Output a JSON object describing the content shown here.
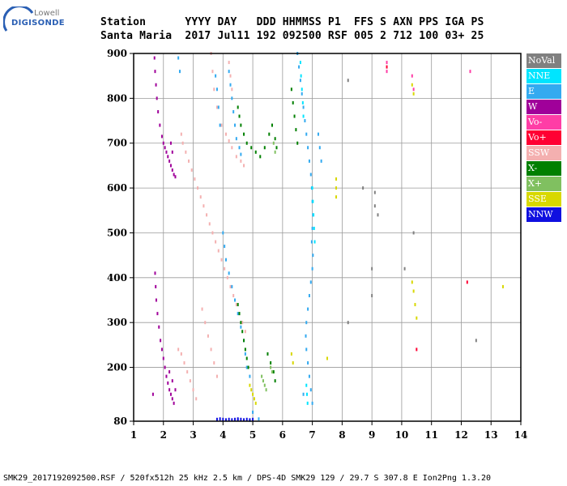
{
  "logo": {
    "brand_top": "Lowell",
    "brand_main": "DIGISONDE",
    "arc_color": "#2a5fb4"
  },
  "header": {
    "line1": "Station      YYYY DAY   DDD HHMMSS P1  FFS S AXN PPS IGA PS",
    "line2": "Santa Maria  2017 Jul11 192 092500 RSF 005 2 712 100 03+ 25"
  },
  "legend": [
    {
      "label": "NoVal",
      "color": "#808080"
    },
    {
      "label": "NNE",
      "color": "#00e5ff"
    },
    {
      "label": "E",
      "color": "#33aaf0"
    },
    {
      "label": "W",
      "color": "#a0009a"
    },
    {
      "label": "Vo-",
      "color": "#ff3da6"
    },
    {
      "label": "Vo+",
      "color": "#ff0033"
    },
    {
      "label": "SSW",
      "color": "#f4b0b0"
    },
    {
      "label": "X-",
      "color": "#008000"
    },
    {
      "label": "X+",
      "color": "#80c060"
    },
    {
      "label": "SSE",
      "color": "#d8d800"
    },
    {
      "label": "NNW",
      "color": "#1010e0"
    }
  ],
  "chart_data": {
    "type": "scatter",
    "title": "",
    "xlabel": "",
    "ylabel": "",
    "xlim": [
      1,
      14
    ],
    "ylim": [
      80,
      900
    ],
    "x_ticks": [
      "1",
      "2",
      "3",
      "4",
      "5",
      "6",
      "7",
      "8",
      "9",
      "10",
      "11",
      "12",
      "13",
      "14"
    ],
    "y_ticks": [
      "80",
      "200",
      "300",
      "400",
      "500",
      "600",
      "700",
      "800",
      "900"
    ],
    "grid": true,
    "series": [
      {
        "name": "W",
        "color": "#a0009a",
        "points": [
          [
            1.7,
            890
          ],
          [
            1.72,
            860
          ],
          [
            1.75,
            830
          ],
          [
            1.78,
            800
          ],
          [
            1.82,
            770
          ],
          [
            1.88,
            740
          ],
          [
            1.95,
            715
          ],
          [
            2.0,
            700
          ],
          [
            2.05,
            690
          ],
          [
            2.1,
            680
          ],
          [
            2.15,
            670
          ],
          [
            2.2,
            660
          ],
          [
            2.25,
            650
          ],
          [
            2.3,
            640
          ],
          [
            2.35,
            630
          ],
          [
            2.4,
            625
          ],
          [
            2.3,
            680
          ],
          [
            2.25,
            700
          ],
          [
            1.72,
            410
          ],
          [
            1.74,
            380
          ],
          [
            1.76,
            350
          ],
          [
            1.8,
            320
          ],
          [
            1.85,
            290
          ],
          [
            1.9,
            260
          ],
          [
            1.95,
            240
          ],
          [
            2.0,
            220
          ],
          [
            2.05,
            200
          ],
          [
            2.1,
            180
          ],
          [
            2.15,
            165
          ],
          [
            2.2,
            150
          ],
          [
            2.25,
            140
          ],
          [
            2.3,
            130
          ],
          [
            2.35,
            120
          ],
          [
            2.2,
            190
          ],
          [
            2.3,
            170
          ],
          [
            2.4,
            150
          ],
          [
            1.65,
            140
          ]
        ]
      },
      {
        "name": "SSW",
        "color": "#f4b0b0",
        "points": [
          [
            2.6,
            720
          ],
          [
            2.65,
            700
          ],
          [
            2.75,
            680
          ],
          [
            2.85,
            660
          ],
          [
            2.95,
            640
          ],
          [
            3.05,
            620
          ],
          [
            3.15,
            600
          ],
          [
            3.25,
            580
          ],
          [
            3.35,
            560
          ],
          [
            3.45,
            540
          ],
          [
            3.55,
            520
          ],
          [
            3.65,
            500
          ],
          [
            3.75,
            480
          ],
          [
            3.85,
            460
          ],
          [
            3.95,
            440
          ],
          [
            4.05,
            420
          ],
          [
            4.15,
            400
          ],
          [
            4.25,
            380
          ],
          [
            4.35,
            360
          ],
          [
            4.45,
            340
          ],
          [
            4.55,
            320
          ],
          [
            4.65,
            300
          ],
          [
            4.75,
            280
          ],
          [
            3.6,
            900
          ],
          [
            3.65,
            860
          ],
          [
            3.7,
            820
          ],
          [
            3.8,
            780
          ],
          [
            3.95,
            740
          ],
          [
            4.1,
            720
          ],
          [
            4.2,
            705
          ],
          [
            4.3,
            690
          ],
          [
            4.45,
            670
          ],
          [
            4.6,
            660
          ],
          [
            4.7,
            650
          ],
          [
            2.6,
            230
          ],
          [
            2.7,
            210
          ],
          [
            2.8,
            190
          ],
          [
            2.9,
            170
          ],
          [
            3.0,
            150
          ],
          [
            3.1,
            130
          ],
          [
            2.5,
            240
          ],
          [
            3.3,
            330
          ],
          [
            3.4,
            300
          ],
          [
            3.5,
            270
          ],
          [
            3.6,
            240
          ],
          [
            3.7,
            210
          ],
          [
            3.8,
            180
          ],
          [
            4.2,
            880
          ],
          [
            4.25,
            850
          ],
          [
            4.3,
            820
          ]
        ]
      },
      {
        "name": "E",
        "color": "#33aaf0",
        "points": [
          [
            4.2,
            860
          ],
          [
            4.25,
            830
          ],
          [
            4.3,
            800
          ],
          [
            4.35,
            770
          ],
          [
            4.4,
            740
          ],
          [
            4.45,
            710
          ],
          [
            4.55,
            690
          ],
          [
            4.6,
            675
          ],
          [
            3.75,
            850
          ],
          [
            3.8,
            820
          ],
          [
            3.85,
            780
          ],
          [
            3.9,
            740
          ],
          [
            4.0,
            500
          ],
          [
            4.05,
            470
          ],
          [
            4.1,
            440
          ],
          [
            4.2,
            410
          ],
          [
            4.3,
            380
          ],
          [
            4.4,
            350
          ],
          [
            4.5,
            320
          ],
          [
            4.6,
            290
          ],
          [
            4.7,
            260
          ],
          [
            4.75,
            230
          ],
          [
            4.8,
            200
          ],
          [
            4.9,
            180
          ],
          [
            6.5,
            900
          ],
          [
            6.55,
            870
          ],
          [
            6.6,
            840
          ],
          [
            6.65,
            810
          ],
          [
            6.7,
            780
          ],
          [
            6.75,
            750
          ],
          [
            6.8,
            720
          ],
          [
            6.85,
            690
          ],
          [
            6.9,
            660
          ],
          [
            6.95,
            630
          ],
          [
            6.98,
            600
          ],
          [
            7.0,
            570
          ],
          [
            7.02,
            540
          ],
          [
            7.0,
            510
          ],
          [
            6.98,
            480
          ],
          [
            7.02,
            450
          ],
          [
            7.0,
            420
          ],
          [
            6.95,
            390
          ],
          [
            6.9,
            360
          ],
          [
            6.85,
            330
          ],
          [
            6.8,
            300
          ],
          [
            6.78,
            270
          ],
          [
            6.8,
            240
          ],
          [
            6.85,
            210
          ],
          [
            6.9,
            180
          ],
          [
            6.95,
            150
          ],
          [
            7.0,
            120
          ],
          [
            6.7,
            140
          ],
          [
            7.2,
            720
          ],
          [
            7.25,
            690
          ],
          [
            7.3,
            660
          ],
          [
            5.0,
            100
          ],
          [
            5.2,
            85
          ],
          [
            4.9,
            82
          ],
          [
            2.5,
            890
          ],
          [
            2.55,
            860
          ]
        ]
      },
      {
        "name": "X-",
        "color": "#008000",
        "points": [
          [
            4.5,
            780
          ],
          [
            4.55,
            760
          ],
          [
            4.6,
            740
          ],
          [
            4.7,
            720
          ],
          [
            4.8,
            700
          ],
          [
            4.95,
            690
          ],
          [
            5.1,
            680
          ],
          [
            5.25,
            670
          ],
          [
            5.4,
            690
          ],
          [
            5.55,
            720
          ],
          [
            5.65,
            740
          ],
          [
            5.75,
            710
          ],
          [
            5.8,
            690
          ],
          [
            4.5,
            340
          ],
          [
            4.55,
            320
          ],
          [
            4.6,
            300
          ],
          [
            4.65,
            280
          ],
          [
            4.7,
            260
          ],
          [
            4.75,
            240
          ],
          [
            4.8,
            220
          ],
          [
            4.85,
            200
          ],
          [
            5.5,
            230
          ],
          [
            5.6,
            210
          ],
          [
            5.7,
            190
          ],
          [
            5.75,
            170
          ],
          [
            6.3,
            820
          ],
          [
            6.35,
            790
          ],
          [
            6.4,
            760
          ],
          [
            6.45,
            730
          ],
          [
            6.5,
            700
          ]
        ]
      },
      {
        "name": "NNE",
        "color": "#00e5ff",
        "points": [
          [
            6.6,
            880
          ],
          [
            6.62,
            850
          ],
          [
            6.65,
            820
          ],
          [
            6.68,
            790
          ],
          [
            6.7,
            760
          ],
          [
            7.0,
            600
          ],
          [
            7.02,
            570
          ],
          [
            7.04,
            540
          ],
          [
            7.06,
            510
          ],
          [
            7.08,
            480
          ],
          [
            6.8,
            160
          ],
          [
            6.82,
            140
          ],
          [
            6.84,
            120
          ]
        ]
      },
      {
        "name": "X+",
        "color": "#80c060",
        "points": [
          [
            5.3,
            180
          ],
          [
            5.35,
            170
          ],
          [
            5.4,
            160
          ],
          [
            5.45,
            150
          ],
          [
            5.6,
            200
          ],
          [
            5.65,
            190
          ],
          [
            5.7,
            700
          ],
          [
            5.75,
            680
          ]
        ]
      },
      {
        "name": "SSE",
        "color": "#d8d800",
        "points": [
          [
            4.9,
            160
          ],
          [
            4.95,
            150
          ],
          [
            5.0,
            140
          ],
          [
            5.05,
            130
          ],
          [
            5.1,
            120
          ],
          [
            7.8,
            620
          ],
          [
            7.8,
            600
          ],
          [
            7.8,
            580
          ],
          [
            7.5,
            220
          ],
          [
            10.35,
            830
          ],
          [
            10.4,
            810
          ],
          [
            10.35,
            390
          ],
          [
            10.4,
            370
          ],
          [
            10.45,
            340
          ],
          [
            10.5,
            310
          ],
          [
            13.4,
            380
          ],
          [
            6.3,
            230
          ],
          [
            6.35,
            210
          ]
        ]
      },
      {
        "name": "Vo-",
        "color": "#ff3da6",
        "points": [
          [
            9.5,
            860
          ],
          [
            9.5,
            880
          ],
          [
            10.35,
            850
          ],
          [
            10.4,
            820
          ],
          [
            12.3,
            860
          ]
        ]
      },
      {
        "name": "Vo+",
        "color": "#ff0033",
        "points": [
          [
            10.5,
            240
          ],
          [
            12.2,
            390
          ],
          [
            9.5,
            870
          ]
        ]
      },
      {
        "name": "NNW",
        "color": "#1010e0",
        "points": [
          [
            3.8,
            84
          ],
          [
            4.0,
            84
          ],
          [
            4.2,
            84
          ],
          [
            4.4,
            84
          ],
          [
            4.6,
            84
          ],
          [
            4.8,
            84
          ],
          [
            5.0,
            84
          ],
          [
            4.1,
            83
          ],
          [
            4.3,
            83
          ],
          [
            4.5,
            83
          ],
          [
            4.7,
            83
          ],
          [
            4.9,
            83
          ],
          [
            3.9,
            85
          ],
          [
            4.5,
            85
          ]
        ]
      },
      {
        "name": "NoVal",
        "color": "#808080",
        "points": [
          [
            9.0,
            420
          ],
          [
            9.1,
            590
          ],
          [
            9.1,
            560
          ],
          [
            9.2,
            540
          ],
          [
            9.0,
            360
          ],
          [
            8.7,
            600
          ],
          [
            10.1,
            420
          ],
          [
            10.4,
            500
          ],
          [
            12.5,
            260
          ],
          [
            8.2,
            300
          ],
          [
            8.2,
            840
          ]
        ]
      }
    ]
  },
  "footer": "SMK29_2017192092500.RSF / 520fx512h 25 kHz 2.5 km / DPS-4D SMK29 129 / 29.7 S 307.8 E Ion2Png 1.3.20"
}
